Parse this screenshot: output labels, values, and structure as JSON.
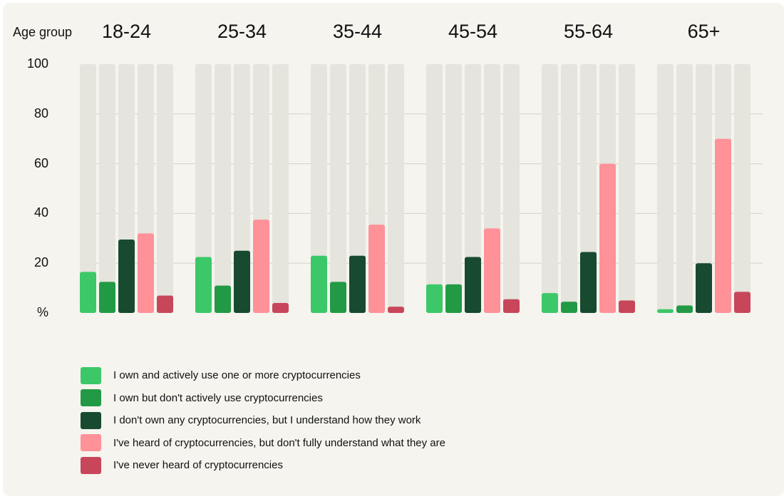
{
  "chart_data": {
    "type": "bar",
    "title": "",
    "xlabel": "Age group",
    "ylabel": "%",
    "ylim": [
      0,
      100
    ],
    "yticks": [
      20,
      40,
      60,
      80,
      100
    ],
    "grid": true,
    "legend_position": "bottom",
    "categories": [
      "18-24",
      "25-34",
      "35-44",
      "45-54",
      "55-64",
      "65+"
    ],
    "series": [
      {
        "name": "I own and actively use one or more cryptocurrencies",
        "color": "#3cc869",
        "values": [
          16.5,
          22.5,
          23,
          11.5,
          8,
          1.5
        ]
      },
      {
        "name": "I own but don't actively use cryptocurrencies",
        "color": "#229a45",
        "values": [
          12.5,
          11,
          12.5,
          11.5,
          4.5,
          3
        ]
      },
      {
        "name": "I don't own any cryptocurrencies, but I understand how they work",
        "color": "#174a2f",
        "values": [
          29.5,
          25,
          23,
          22.5,
          24.5,
          20
        ]
      },
      {
        "name": "I've heard of cryptocurrencies, but don't fully understand what they are",
        "color": "#ff9199",
        "values": [
          32,
          37.5,
          35.5,
          34,
          60,
          70
        ]
      },
      {
        "name": "I've never heard of cryptocurrencies",
        "color": "#c8465a",
        "values": [
          7,
          4,
          2.5,
          5.5,
          5,
          8.5
        ]
      }
    ]
  }
}
